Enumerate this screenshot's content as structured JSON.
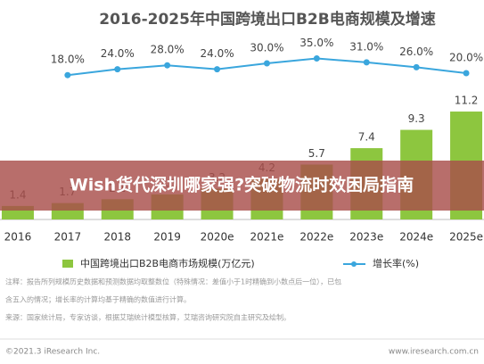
{
  "chart_data": {
    "type": "bar",
    "title": "2016-2025年中国跨境出口B2B电商规模及增速",
    "categories": [
      "2016",
      "2017",
      "2018",
      "2019",
      "2020e",
      "2021e",
      "2022e",
      "2023e",
      "2024e",
      "2025e"
    ],
    "series": [
      {
        "name": "中国跨境出口B2B电商市场规模(万亿元)",
        "color": "#8dc63f",
        "values": [
          1.4,
          1.7,
          2.1,
          2.6,
          3.2,
          4.2,
          5.7,
          7.4,
          9.3,
          11.2
        ]
      },
      {
        "name": "增长率(%)",
        "color": "#3aa6dd",
        "type": "line",
        "values": [
          null,
          18,
          24,
          28,
          24,
          30,
          35,
          31,
          26,
          20
        ],
        "value_labels": [
          null,
          "18.0%",
          "24.0%",
          "28.0%",
          "24.0%",
          "30.0%",
          "35.0%",
          "31.0%",
          "26.0%",
          "20.0%"
        ]
      }
    ],
    "notes": [
      "注释：报告所列规模历史数据和预测数据均取整数位（特殊情况：差值小于1时精确到小数点后一位），已包",
      "含五入的情况；增长率的计算均基于精确的数值进行计算。",
      "来源：国家统计局，专家访谈，根据艾瑞统计模型核算，艾瑞咨询研究院自主研究及绘制。"
    ],
    "copyright": "©2021.3 iResearch Inc.",
    "website": "www.iresearch.com.cn",
    "banner": "Wish货代深圳哪家强?突破物流时效困局指南"
  }
}
